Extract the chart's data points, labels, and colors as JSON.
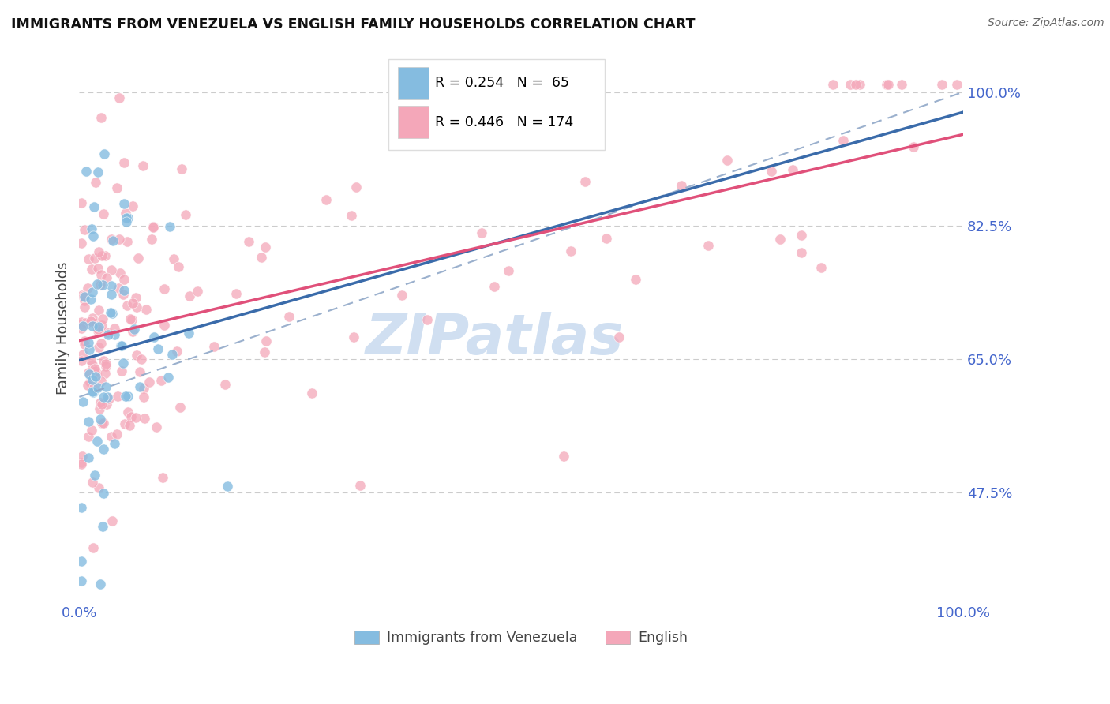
{
  "title": "IMMIGRANTS FROM VENEZUELA VS ENGLISH FAMILY HOUSEHOLDS CORRELATION CHART",
  "source": "Source: ZipAtlas.com",
  "ylabel": "Family Households",
  "xlim": [
    0,
    1.0
  ],
  "ylim": [
    0.33,
    1.05
  ],
  "yticks": [
    0.475,
    0.65,
    0.825,
    1.0
  ],
  "ytick_labels": [
    "47.5%",
    "65.0%",
    "82.5%",
    "100.0%"
  ],
  "xticks": [
    0.0,
    1.0
  ],
  "xtick_labels": [
    "0.0%",
    "100.0%"
  ],
  "blue_color": "#85bce0",
  "pink_color": "#f4a7b9",
  "blue_line_color": "#3a6baa",
  "pink_line_color": "#e0507a",
  "dashed_line_color": "#90a8c8",
  "tick_color": "#4466cc",
  "label_color": "#444444",
  "watermark_color": "#c5d8ee",
  "background_color": "#ffffff",
  "grid_color": "#cccccc",
  "legend_border_color": "#dddddd",
  "legend_text_r_color": "#000000",
  "legend_text_n_color": "#4466cc"
}
